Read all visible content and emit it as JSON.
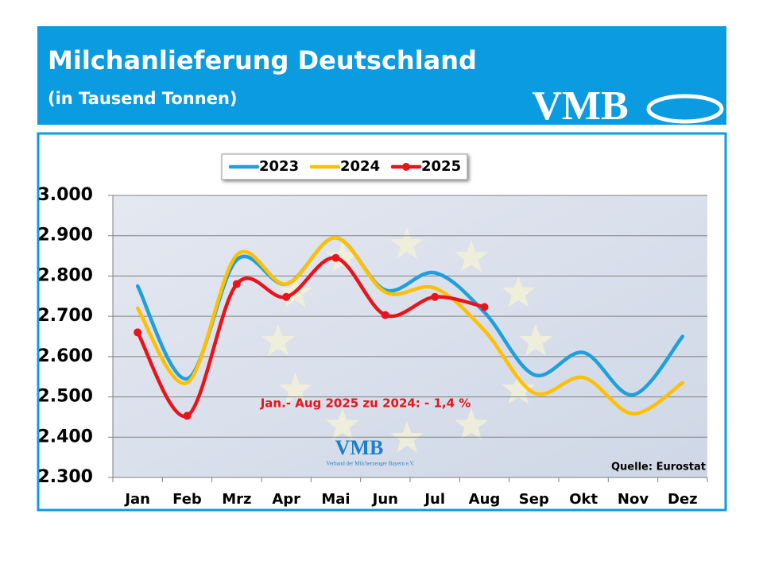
{
  "chart_data": {
    "type": "line",
    "title": "Milchanlieferung Deutschland",
    "subtitle": "(in Tausend Tonnen)",
    "logo": "VMB",
    "watermark_logo": "VMB",
    "watermark_caption": "Verband der Milcherzeuger Bayern e.V.",
    "annotation": "Jan.- Aug 2025 zu 2024: - 1,4 %",
    "source": "Quelle: Eurostat",
    "categories": [
      "Jan",
      "Feb",
      "Mrz",
      "Apr",
      "Mai",
      "Jun",
      "Jul",
      "Aug",
      "Sep",
      "Okt",
      "Nov",
      "Dez"
    ],
    "series": [
      {
        "name": "2023",
        "color": "#1fa0dc",
        "values": [
          2775,
          2545,
          2840,
          2780,
          2895,
          2765,
          2808,
          2710,
          2555,
          2610,
          2505,
          2650
        ]
      },
      {
        "name": "2024",
        "color": "#ffc000",
        "values": [
          2720,
          2535,
          2852,
          2780,
          2895,
          2760,
          2770,
          2665,
          2510,
          2548,
          2458,
          2535
        ]
      },
      {
        "name": "2025",
        "color": "#e8141b",
        "markers": true,
        "values": [
          2660,
          2453,
          2780,
          2748,
          2845,
          2703,
          2748,
          2723,
          null,
          null,
          null,
          null
        ]
      }
    ],
    "ylim": [
      2300,
      3000
    ],
    "yticks": [
      {
        "value": 2300,
        "label": "2.300"
      },
      {
        "value": 2400,
        "label": "2.400"
      },
      {
        "value": 2500,
        "label": "2.500"
      },
      {
        "value": 2600,
        "label": "2.600"
      },
      {
        "value": 2700,
        "label": "2.700"
      },
      {
        "value": 2800,
        "label": "2.800"
      },
      {
        "value": 2900,
        "label": "2.900"
      },
      {
        "value": 3000,
        "label": "3.000"
      }
    ],
    "grid": true,
    "legend": "top"
  }
}
